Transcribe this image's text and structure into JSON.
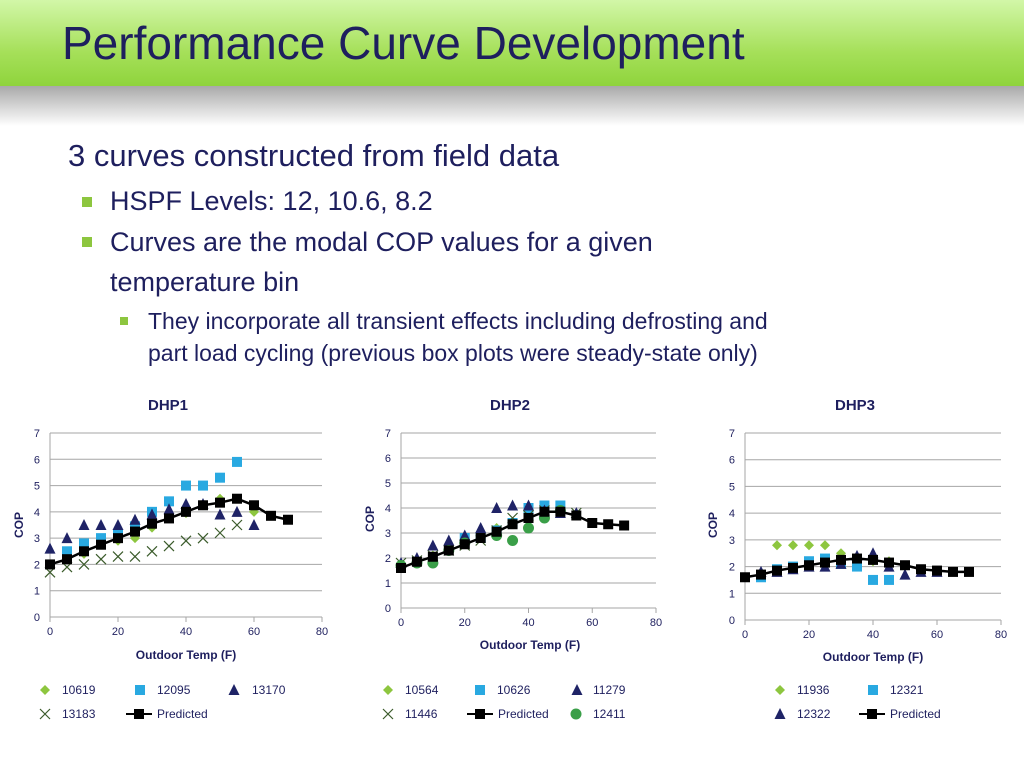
{
  "slide": {
    "title": "Performance Curve Development",
    "bullets": [
      "3 curves constructed from field data",
      "HSPF Levels:  12, 10.6, 8.2",
      "Curves are the modal COP values for a given",
      "temperature bin",
      "They incorporate all transient effects including defrosting and",
      "part load cycling (previous box plots were steady-state only)"
    ]
  },
  "colors": {
    "header_green": "#9ad94a",
    "text": "#1e1f5e",
    "bullet": "#8dc63f",
    "diamond": "#8dc63f",
    "square": "#29a9e1",
    "triangle": "#1f2366",
    "x": "#3b5b2b",
    "circle": "#3a9f48",
    "predicted": "#000000"
  },
  "chart_data": [
    {
      "type": "scatter",
      "title": "DHP1",
      "xlabel": "Outdoor Temp (F)",
      "ylabel": "COP",
      "xlim": [
        0,
        80
      ],
      "ylim": [
        0,
        7
      ],
      "xticks": [
        0,
        20,
        40,
        60,
        80
      ],
      "yticks": [
        0,
        1,
        2,
        3,
        4,
        5,
        6,
        7
      ],
      "grid": "horizontal",
      "legend": "bottom",
      "series": [
        {
          "name": "10619",
          "marker": "diamond",
          "points": [
            [
              10,
              2.4
            ],
            [
              15,
              2.75
            ],
            [
              20,
              2.9
            ],
            [
              25,
              3.0
            ],
            [
              30,
              3.4
            ],
            [
              35,
              3.8
            ],
            [
              40,
              3.95
            ],
            [
              45,
              4.25
            ],
            [
              50,
              4.5
            ],
            [
              60,
              4.0
            ]
          ]
        },
        {
          "name": "12095",
          "marker": "square",
          "points": [
            [
              5,
              2.5
            ],
            [
              10,
              2.8
            ],
            [
              15,
              3.0
            ],
            [
              20,
              3.15
            ],
            [
              25,
              3.45
            ],
            [
              30,
              4.0
            ],
            [
              35,
              4.4
            ],
            [
              40,
              5.0
            ],
            [
              45,
              5.0
            ],
            [
              50,
              5.3
            ],
            [
              55,
              5.9
            ]
          ]
        },
        {
          "name": "13170",
          "marker": "triangle",
          "points": [
            [
              0,
              2.6
            ],
            [
              5,
              3.0
            ],
            [
              10,
              3.5
            ],
            [
              15,
              3.5
            ],
            [
              20,
              3.5
            ],
            [
              25,
              3.7
            ],
            [
              30,
              3.9
            ],
            [
              35,
              4.1
            ],
            [
              40,
              4.3
            ],
            [
              45,
              4.3
            ],
            [
              50,
              3.9
            ],
            [
              55,
              4.0
            ],
            [
              60,
              3.5
            ]
          ]
        },
        {
          "name": "13183",
          "marker": "x",
          "points": [
            [
              0,
              1.7
            ],
            [
              5,
              1.9
            ],
            [
              10,
              2.0
            ],
            [
              15,
              2.2
            ],
            [
              20,
              2.3
            ],
            [
              25,
              2.3
            ],
            [
              30,
              2.5
            ],
            [
              35,
              2.7
            ],
            [
              40,
              2.9
            ],
            [
              45,
              3.0
            ],
            [
              50,
              3.2
            ],
            [
              55,
              3.5
            ]
          ]
        },
        {
          "name": "Predicted",
          "marker": "predicted",
          "points": [
            [
              0,
              2.0
            ],
            [
              5,
              2.2
            ],
            [
              10,
              2.5
            ],
            [
              15,
              2.75
            ],
            [
              20,
              3.0
            ],
            [
              25,
              3.25
            ],
            [
              30,
              3.55
            ],
            [
              35,
              3.75
            ],
            [
              40,
              4.0
            ],
            [
              45,
              4.25
            ],
            [
              50,
              4.35
            ],
            [
              55,
              4.5
            ],
            [
              60,
              4.25
            ],
            [
              65,
              3.85
            ],
            [
              70,
              3.7
            ]
          ]
        }
      ]
    },
    {
      "type": "scatter",
      "title": "DHP2",
      "xlabel": "Outdoor Temp (F)",
      "ylabel": "COP",
      "xlim": [
        0,
        80
      ],
      "ylim": [
        0,
        7
      ],
      "xticks": [
        0,
        20,
        40,
        60,
        80
      ],
      "yticks": [
        0,
        1,
        2,
        3,
        4,
        5,
        6,
        7
      ],
      "grid": "horizontal",
      "legend": "bottom",
      "series": [
        {
          "name": "10564",
          "marker": "diamond",
          "points": [
            [
              0,
              1.7
            ],
            [
              5,
              1.8
            ],
            [
              10,
              2.1
            ],
            [
              15,
              2.3
            ],
            [
              20,
              2.6
            ],
            [
              25,
              2.8
            ],
            [
              30,
              3.2
            ],
            [
              35,
              3.4
            ],
            [
              40,
              3.5
            ],
            [
              45,
              3.8
            ],
            [
              50,
              3.9
            ]
          ]
        },
        {
          "name": "10626",
          "marker": "square",
          "points": [
            [
              20,
              2.8
            ],
            [
              25,
              2.8
            ],
            [
              30,
              3.1
            ],
            [
              35,
              3.4
            ],
            [
              40,
              4.0
            ],
            [
              45,
              4.1
            ],
            [
              50,
              4.1
            ]
          ]
        },
        {
          "name": "11279",
          "marker": "triangle",
          "points": [
            [
              0,
              1.8
            ],
            [
              5,
              2.0
            ],
            [
              10,
              2.5
            ],
            [
              15,
              2.7
            ],
            [
              20,
              2.9
            ],
            [
              25,
              3.2
            ],
            [
              30,
              4.0
            ],
            [
              35,
              4.1
            ],
            [
              40,
              4.1
            ],
            [
              45,
              3.9
            ],
            [
              50,
              3.8
            ],
            [
              55,
              3.8
            ]
          ]
        },
        {
          "name": "11446",
          "marker": "x",
          "points": [
            [
              0,
              1.8
            ],
            [
              5,
              1.9
            ],
            [
              10,
              2.1
            ],
            [
              15,
              2.3
            ],
            [
              20,
              2.5
            ],
            [
              25,
              2.7
            ],
            [
              30,
              3.1
            ],
            [
              35,
              3.6
            ],
            [
              40,
              3.7
            ],
            [
              45,
              3.9
            ],
            [
              55,
              3.8
            ]
          ]
        },
        {
          "name": "Predicted",
          "marker": "predicted",
          "points": [
            [
              0,
              1.6
            ],
            [
              5,
              1.85
            ],
            [
              10,
              2.05
            ],
            [
              15,
              2.3
            ],
            [
              20,
              2.55
            ],
            [
              25,
              2.8
            ],
            [
              30,
              3.05
            ],
            [
              35,
              3.35
            ],
            [
              40,
              3.6
            ],
            [
              45,
              3.85
            ],
            [
              50,
              3.85
            ],
            [
              55,
              3.7
            ],
            [
              60,
              3.4
            ],
            [
              65,
              3.35
            ],
            [
              70,
              3.3
            ]
          ]
        },
        {
          "name": "12411",
          "marker": "circle",
          "points": [
            [
              0,
              1.7
            ],
            [
              5,
              1.8
            ],
            [
              10,
              1.8
            ],
            [
              15,
              2.3
            ],
            [
              20,
              2.6
            ],
            [
              30,
              2.9
            ],
            [
              35,
              2.7
            ],
            [
              40,
              3.2
            ],
            [
              45,
              3.6
            ],
            [
              50,
              3.9
            ]
          ]
        }
      ]
    },
    {
      "type": "scatter",
      "title": "DHP3",
      "xlabel": "Outdoor Temp (F)",
      "ylabel": "COP",
      "xlim": [
        0,
        80
      ],
      "ylim": [
        0,
        7
      ],
      "xticks": [
        0,
        20,
        40,
        60,
        80
      ],
      "yticks": [
        0,
        1,
        2,
        3,
        4,
        5,
        6,
        7
      ],
      "grid": "horizontal",
      "legend": "bottom",
      "series": [
        {
          "name": "11936",
          "marker": "diamond",
          "points": [
            [
              10,
              2.8
            ],
            [
              15,
              2.8
            ],
            [
              20,
              2.8
            ],
            [
              25,
              2.8
            ],
            [
              30,
              2.5
            ],
            [
              40,
              2.2
            ],
            [
              45,
              2.2
            ]
          ]
        },
        {
          "name": "12321",
          "marker": "square",
          "points": [
            [
              5,
              1.6
            ],
            [
              10,
              1.9
            ],
            [
              15,
              2.0
            ],
            [
              20,
              2.2
            ],
            [
              25,
              2.3
            ],
            [
              30,
              2.1
            ],
            [
              35,
              2.0
            ],
            [
              40,
              1.5
            ],
            [
              45,
              1.5
            ]
          ]
        },
        {
          "name": "12322",
          "marker": "triangle",
          "points": [
            [
              5,
              1.8
            ],
            [
              10,
              1.8
            ],
            [
              15,
              1.9
            ],
            [
              20,
              2.0
            ],
            [
              25,
              2.0
            ],
            [
              30,
              2.1
            ],
            [
              35,
              2.4
            ],
            [
              40,
              2.5
            ],
            [
              45,
              2.0
            ],
            [
              50,
              1.7
            ],
            [
              55,
              1.8
            ],
            [
              60,
              1.8
            ]
          ]
        },
        {
          "name": "Predicted",
          "marker": "predicted",
          "points": [
            [
              0,
              1.6
            ],
            [
              5,
              1.7
            ],
            [
              10,
              1.85
            ],
            [
              15,
              1.95
            ],
            [
              20,
              2.05
            ],
            [
              25,
              2.15
            ],
            [
              30,
              2.25
            ],
            [
              35,
              2.3
            ],
            [
              40,
              2.25
            ],
            [
              45,
              2.15
            ],
            [
              50,
              2.05
            ],
            [
              55,
              1.9
            ],
            [
              60,
              1.85
            ],
            [
              65,
              1.8
            ],
            [
              70,
              1.8
            ]
          ]
        }
      ]
    }
  ]
}
